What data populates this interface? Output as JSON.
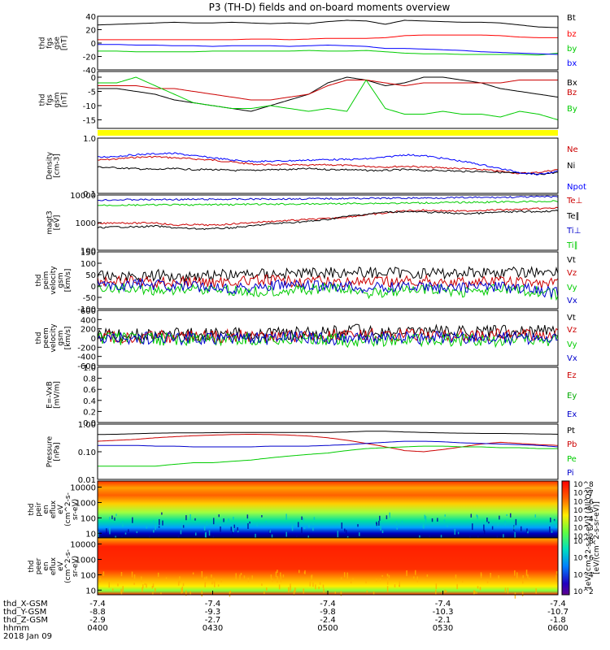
{
  "title": "P3 (TH-D) fields and on-board moments overview",
  "chart_data": [
    {
      "type": "line",
      "ylabel": [
        "thd",
        "fgs",
        "gse",
        "[nT]"
      ],
      "ylim": [
        -40,
        40
      ],
      "yscale": "linear",
      "yticks": [
        "40",
        "20",
        "0",
        "-20",
        "-40"
      ],
      "legend": [
        "Bt",
        "bz",
        "by",
        "bx"
      ],
      "series": [
        {
          "name": "Bt",
          "color": "#000000",
          "values": [
            27,
            28,
            29,
            30,
            31,
            30,
            30,
            31,
            30,
            29,
            30,
            29,
            32,
            34,
            33,
            28,
            34,
            33,
            32,
            31,
            31,
            30,
            27,
            24,
            23
          ]
        },
        {
          "name": "bz",
          "color": "#ff0000",
          "values": [
            5,
            5,
            5,
            5,
            5,
            5,
            5,
            5,
            6,
            6,
            5,
            6,
            7,
            7,
            7,
            8,
            11,
            12,
            12,
            12,
            12,
            11,
            9,
            8,
            8
          ]
        },
        {
          "name": "by",
          "color": "#00cc00",
          "values": [
            -12,
            -12,
            -13,
            -13,
            -13,
            -13,
            -12,
            -12,
            -12,
            -12,
            -12,
            -11,
            -12,
            -12,
            -11,
            -13,
            -15,
            -16,
            -16,
            -17,
            -17,
            -17,
            -17,
            -18,
            -15
          ]
        },
        {
          "name": "bx",
          "color": "#0000ff",
          "values": [
            -2,
            -2,
            -3,
            -3,
            -4,
            -4,
            -5,
            -4,
            -4,
            -4,
            -5,
            -4,
            -3,
            -4,
            -5,
            -8,
            -8,
            -9,
            -10,
            -11,
            -13,
            -14,
            -15,
            -16,
            -17
          ]
        }
      ]
    },
    {
      "type": "line",
      "ylabel": [
        "thd",
        "fgs",
        "gsm",
        "[nT]"
      ],
      "ylim": [
        -18,
        2
      ],
      "yscale": "linear",
      "yticks": [
        "0",
        "-5",
        "-10",
        "-15"
      ],
      "legend": [
        "Bx",
        "Bz",
        "By"
      ],
      "series": [
        {
          "name": "Bx",
          "color": "#000000",
          "values": [
            -4,
            -4,
            -5,
            -6,
            -8,
            -9,
            -10,
            -11,
            -12,
            -10,
            -8,
            -6,
            -2,
            0,
            -1,
            -3,
            -2,
            0,
            0,
            -1,
            -2,
            -4,
            -5,
            -6,
            -7
          ]
        },
        {
          "name": "Bz",
          "color": "#cc0000",
          "values": [
            -3,
            -3,
            -3,
            -4,
            -4,
            -5,
            -6,
            -7,
            -8,
            -8,
            -7,
            -6,
            -3,
            -1,
            -1,
            -2,
            -3,
            -2,
            -2,
            -2,
            -2,
            -2,
            -1,
            -1,
            -1
          ]
        },
        {
          "name": "By",
          "color": "#00cc00",
          "values": [
            -2,
            -2,
            0,
            -3,
            -6,
            -9,
            -10,
            -11,
            -11,
            -10,
            -11,
            -12,
            -11,
            -12,
            -1,
            -11,
            -13,
            -13,
            -12,
            -13,
            -13,
            -14,
            -12,
            -13,
            -15
          ]
        }
      ]
    },
    {
      "type": "line",
      "ylabel": [
        "Density",
        "[cm-3]"
      ],
      "ylim": [
        0.1,
        1.0
      ],
      "yscale": "log",
      "yticks": [
        "1.0",
        "0.1"
      ],
      "legend": [
        "Ne",
        "Ni",
        "Npot"
      ],
      "series": [
        {
          "name": "Ne",
          "color": "#cc0000",
          "values": [
            0.4,
            0.42,
            0.45,
            0.46,
            0.44,
            0.42,
            0.4,
            0.37,
            0.34,
            0.33,
            0.33,
            0.32,
            0.33,
            0.32,
            0.31,
            0.3,
            0.31,
            0.3,
            0.29,
            0.28,
            0.27,
            0.25,
            0.23,
            0.24,
            0.27
          ]
        },
        {
          "name": "Ni",
          "color": "#000000",
          "values": [
            0.3,
            0.29,
            0.28,
            0.27,
            0.28,
            0.27,
            0.27,
            0.26,
            0.26,
            0.27,
            0.27,
            0.28,
            0.27,
            0.27,
            0.26,
            0.26,
            0.27,
            0.26,
            0.26,
            0.25,
            0.25,
            0.24,
            0.23,
            0.22,
            0.24
          ]
        },
        {
          "name": "Npot",
          "color": "#0000ff",
          "values": [
            0.45,
            0.47,
            0.5,
            0.52,
            0.53,
            0.48,
            0.44,
            0.4,
            0.38,
            0.38,
            0.39,
            0.4,
            0.41,
            0.41,
            0.42,
            0.45,
            0.5,
            0.48,
            0.43,
            0.38,
            0.33,
            0.28,
            0.24,
            0.22,
            0.25
          ]
        }
      ]
    },
    {
      "type": "line",
      "ylabel": [
        "magt3",
        "[eV]"
      ],
      "ylim": [
        100,
        10000
      ],
      "yscale": "log",
      "yticks": [
        "10000",
        "1000",
        "100"
      ],
      "legend": [
        "Te⊥",
        "Te∥",
        "Ti⊥",
        "Ti∥"
      ],
      "series": [
        {
          "name": "Te⊥",
          "color": "#cc0000",
          "values": [
            900,
            1000,
            950,
            1000,
            800,
            850,
            800,
            900,
            1000,
            1100,
            1200,
            1300,
            1400,
            1600,
            1900,
            2200,
            2700,
            2800,
            2700,
            2600,
            2800,
            2900,
            3000,
            3200,
            3400
          ]
        },
        {
          "name": "Te∥",
          "color": "#000000",
          "values": [
            650,
            700,
            700,
            750,
            650,
            600,
            600,
            650,
            750,
            900,
            1000,
            1100,
            1300,
            1700,
            2000,
            2400,
            2500,
            2400,
            2300,
            2100,
            2200,
            2400,
            2500,
            2500,
            2700
          ]
        },
        {
          "name": "Ti⊥",
          "color": "#0000cc",
          "values": [
            6500,
            6700,
            6800,
            6800,
            6900,
            6900,
            7000,
            7000,
            7100,
            7200,
            7200,
            7300,
            7400,
            7500,
            7600,
            7600,
            7700,
            7800,
            7900,
            8000,
            8100,
            8200,
            8400,
            8600,
            8700
          ]
        },
        {
          "name": "Ti∥",
          "color": "#00cc00",
          "values": [
            4200,
            4300,
            4300,
            4400,
            4400,
            4400,
            4500,
            4500,
            4600,
            4600,
            4700,
            4700,
            4800,
            4900,
            5000,
            5000,
            5100,
            5200,
            5300,
            5400,
            5500,
            5600,
            5700,
            5800,
            6000
          ]
        }
      ]
    },
    {
      "type": "line",
      "ylabel": [
        "thd",
        "peim",
        "velocity",
        "gsm",
        "[km/s]"
      ],
      "ylim": [
        -100,
        150
      ],
      "yscale": "linear",
      "yticks": [
        "150",
        "100",
        "50",
        "0",
        "-50",
        "-100"
      ],
      "legend": [
        "Vt",
        "Vz",
        "Vy",
        "Vx"
      ],
      "series": [
        {
          "name": "Vt",
          "color": "#000000",
          "values": [
            40,
            45,
            42,
            48,
            44,
            46,
            48,
            50,
            52,
            54,
            55,
            58,
            60,
            62,
            58,
            60,
            56,
            58,
            55,
            60,
            62,
            58,
            60,
            62,
            70
          ]
        },
        {
          "name": "Vz",
          "color": "#cc0000",
          "values": [
            20,
            22,
            18,
            15,
            20,
            18,
            15,
            20,
            22,
            25,
            20,
            22,
            18,
            20,
            15,
            18,
            20,
            22,
            18,
            15,
            18,
            20,
            15,
            12,
            10
          ]
        },
        {
          "name": "Vy",
          "color": "#00cc00",
          "values": [
            -5,
            -10,
            -15,
            -20,
            -15,
            -10,
            -15,
            -20,
            -25,
            -20,
            -15,
            -20,
            -10,
            -15,
            -30,
            -25,
            -20,
            -15,
            -20,
            -25,
            -20,
            -15,
            -20,
            -25,
            -40
          ]
        },
        {
          "name": "Vx",
          "color": "#0000cc",
          "values": [
            5,
            0,
            10,
            5,
            0,
            -5,
            0,
            -10,
            -5,
            0,
            5,
            0,
            -5,
            0,
            -10,
            -5,
            0,
            -5,
            -10,
            -5,
            0,
            -5,
            -10,
            -20,
            -30
          ]
        }
      ]
    },
    {
      "type": "line",
      "ylabel": [
        "thd",
        "peem",
        "velocity",
        "gsm",
        "[km/s]"
      ],
      "ylim": [
        -600,
        600
      ],
      "yscale": "linear",
      "yticks": [
        "600",
        "400",
        "200",
        "0",
        "-200",
        "-400",
        "-600"
      ],
      "legend": [
        "Vt",
        "Vz",
        "Vy",
        "Vx"
      ],
      "series": [
        {
          "name": "Vt",
          "color": "#000000",
          "values": [
            60,
            70,
            65,
            80,
            75,
            90,
            85,
            95,
            100,
            110,
            105,
            115,
            120,
            180,
            140,
            130,
            125,
            135,
            140,
            130,
            125,
            140,
            150,
            160,
            170
          ]
        },
        {
          "name": "Vz",
          "color": "#cc0000",
          "values": [
            20,
            25,
            15,
            30,
            25,
            35,
            30,
            40,
            45,
            50,
            45,
            55,
            60,
            90,
            70,
            60,
            55,
            65,
            70,
            60,
            55,
            65,
            70,
            80,
            90
          ]
        },
        {
          "name": "Vy",
          "color": "#00cc00",
          "values": [
            -20,
            -25,
            -30,
            -20,
            -25,
            -30,
            -35,
            -25,
            -30,
            -35,
            -40,
            -35,
            -30,
            -80,
            -50,
            -40,
            -45,
            -40,
            -35,
            -40,
            -45,
            -50,
            -55,
            -60,
            -70
          ]
        },
        {
          "name": "Vx",
          "color": "#0000cc",
          "values": [
            0,
            -5,
            5,
            0,
            -10,
            0,
            5,
            -5,
            0,
            -10,
            0,
            5,
            -5,
            -20,
            -10,
            0,
            -5,
            0,
            5,
            -5,
            0,
            -5,
            -10,
            -15,
            -20
          ]
        }
      ]
    },
    {
      "type": "line",
      "ylabel": [
        "E=-VxB",
        "[mV/m]"
      ],
      "ylim": [
        0.0,
        1.0
      ],
      "yscale": "linear",
      "yticks": [
        "1.0",
        "0.8",
        "0.6",
        "0.4",
        "0.2",
        "0.0"
      ],
      "legend": [
        "Ez",
        "Ey",
        "Ex"
      ],
      "series": []
    },
    {
      "type": "line",
      "ylabel": [
        "Pressure",
        "[nPa]"
      ],
      "ylim": [
        0.01,
        1.0
      ],
      "yscale": "log",
      "yticks": [
        "1.00",
        "0.10",
        "0.01"
      ],
      "legend": [
        "Pt",
        "Pb",
        "Pe",
        "Pi"
      ],
      "series": [
        {
          "name": "Pt",
          "color": "#000000",
          "values": [
            0.42,
            0.43,
            0.45,
            0.47,
            0.48,
            0.48,
            0.49,
            0.5,
            0.5,
            0.5,
            0.5,
            0.5,
            0.5,
            0.52,
            0.55,
            0.55,
            0.52,
            0.5,
            0.48,
            0.47,
            0.46,
            0.46,
            0.45,
            0.44,
            0.43
          ]
        },
        {
          "name": "Pb",
          "color": "#cc0000",
          "values": [
            0.24,
            0.26,
            0.28,
            0.32,
            0.35,
            0.38,
            0.4,
            0.42,
            0.43,
            0.42,
            0.4,
            0.37,
            0.32,
            0.26,
            0.2,
            0.15,
            0.11,
            0.1,
            0.12,
            0.15,
            0.19,
            0.22,
            0.2,
            0.18,
            0.17
          ]
        },
        {
          "name": "Pe",
          "color": "#00cc00",
          "values": [
            0.03,
            0.03,
            0.03,
            0.03,
            0.035,
            0.04,
            0.04,
            0.045,
            0.05,
            0.06,
            0.07,
            0.08,
            0.09,
            0.11,
            0.13,
            0.14,
            0.15,
            0.16,
            0.16,
            0.15,
            0.15,
            0.14,
            0.14,
            0.13,
            0.13
          ]
        },
        {
          "name": "Pi",
          "color": "#0000cc",
          "values": [
            0.17,
            0.17,
            0.17,
            0.16,
            0.16,
            0.15,
            0.15,
            0.15,
            0.15,
            0.16,
            0.16,
            0.16,
            0.17,
            0.18,
            0.2,
            0.22,
            0.24,
            0.24,
            0.23,
            0.21,
            0.2,
            0.19,
            0.18,
            0.17,
            0.15
          ]
        }
      ]
    },
    {
      "type": "heatmap",
      "ylabel": [
        "thd",
        "peir",
        "en",
        "eflux",
        "eV",
        "(cm^2-s-",
        "sr-eV)"
      ],
      "ylim": [
        5,
        25000
      ],
      "yscale": "log",
      "yticks": [
        "10000",
        "1000",
        "100",
        "10"
      ],
      "colorbar": {
        "label": "[eV/(cm^2-s-sr-eV)]",
        "ticks": [
          "10^8",
          "10^7",
          "10^6",
          "10^5",
          "10^4",
          "10^3",
          "10^2"
        ]
      }
    },
    {
      "type": "heatmap",
      "ylabel": [
        "thd",
        "peer",
        "en",
        "eflux",
        "eV",
        "(cm^2-s-",
        "sr-eV)"
      ],
      "ylim": [
        5,
        25000
      ],
      "yscale": "log",
      "yticks": [
        "10000",
        "1000",
        "100",
        "10"
      ],
      "colorbar": {
        "label": "[eV/(cm^2-s-sr-eV)] (All Qs)",
        "ticks": [
          "10^8",
          "10^6",
          "10^4",
          "10^2"
        ]
      }
    }
  ],
  "xaxis": {
    "rows": [
      {
        "label": "thd_X-GSM",
        "values": [
          "-7.4",
          "-7.4",
          "-7.4",
          "-7.4",
          "-7.4"
        ]
      },
      {
        "label": "thd_Y-GSM",
        "values": [
          "-8.8",
          "-9.3",
          "-9.8",
          "-10.3",
          "-10.7"
        ]
      },
      {
        "label": "thd_Z-GSM",
        "values": [
          "-2.9",
          "-2.7",
          "-2.4",
          "-2.1",
          "-1.8"
        ]
      },
      {
        "label": "hhmm",
        "values": [
          "0400",
          "0430",
          "0500",
          "0530",
          "0600"
        ]
      }
    ],
    "date": "2018 Jan 09"
  },
  "colors": {
    "yellow_bar": "#ffff00"
  }
}
